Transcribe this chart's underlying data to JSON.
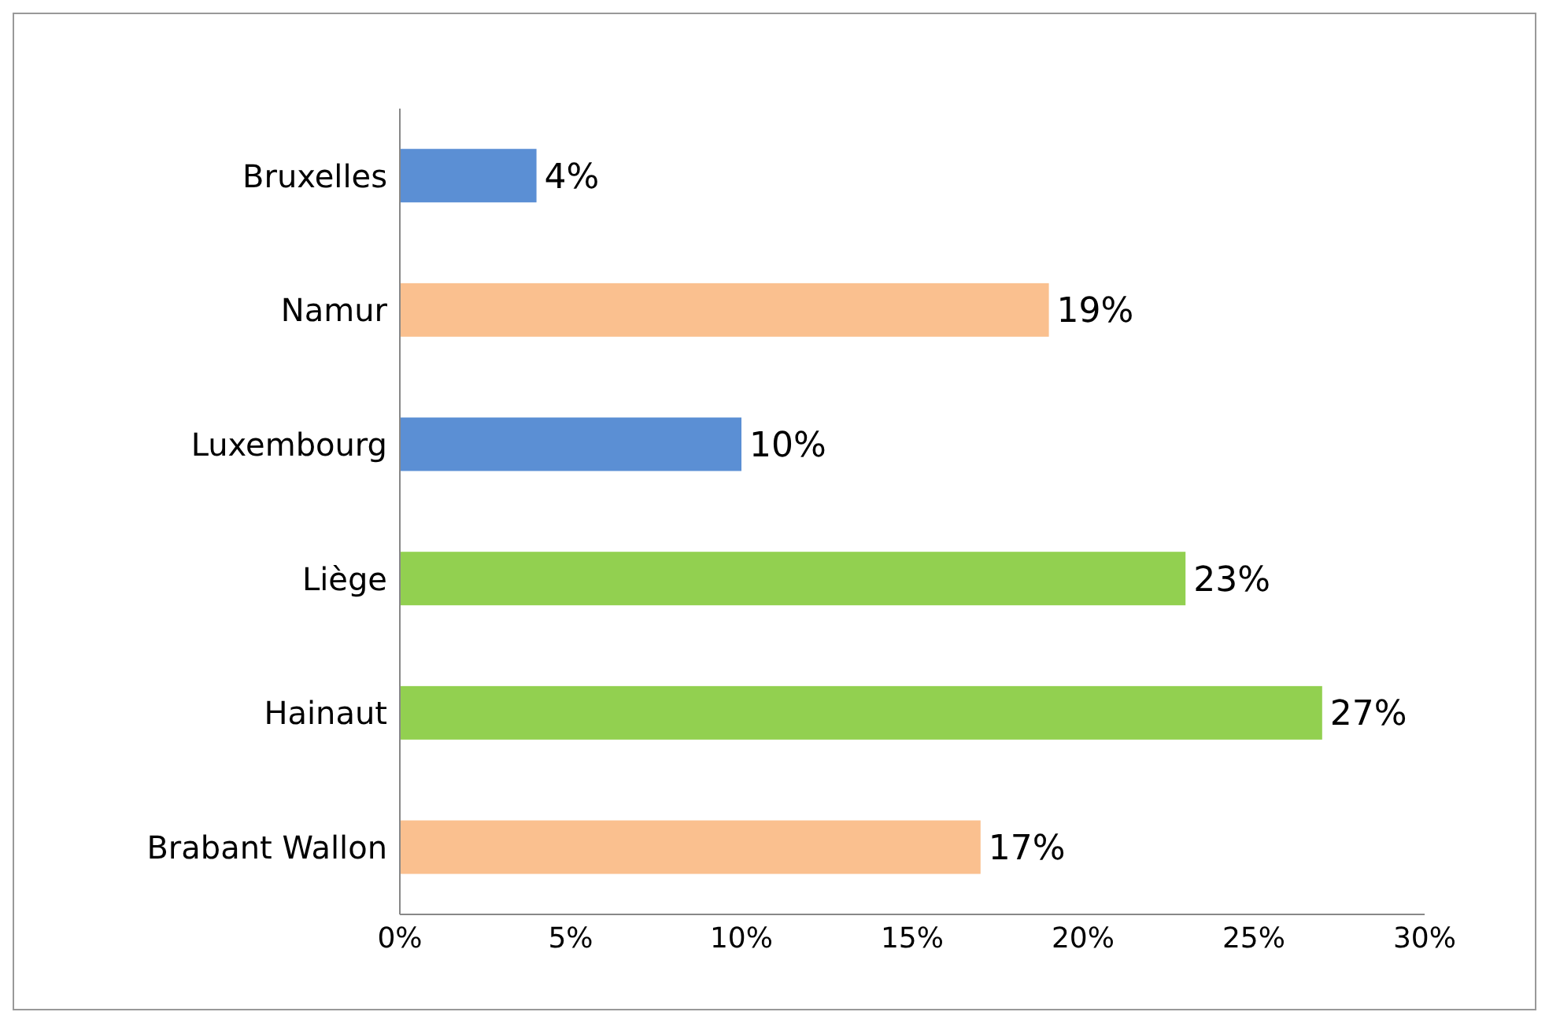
{
  "chart_data": {
    "type": "bar",
    "orientation": "horizontal",
    "categories": [
      "Bruxelles",
      "Namur",
      "Luxembourg",
      "Liège",
      "Hainaut",
      "Brabant Wallon"
    ],
    "values": [
      4,
      19,
      10,
      23,
      27,
      17
    ],
    "value_labels": [
      "4%",
      "19%",
      "10%",
      "23%",
      "27%",
      "17%"
    ],
    "colors": [
      "#5b8fd4",
      "#fac08f",
      "#5b8fd4",
      "#92d050",
      "#92d050",
      "#fac08f"
    ],
    "xlim": [
      0,
      30
    ],
    "xticks": [
      {
        "value": 0,
        "label": "0%"
      },
      {
        "value": 5,
        "label": "5%"
      },
      {
        "value": 10,
        "label": "10%"
      },
      {
        "value": 15,
        "label": "15%"
      },
      {
        "value": 20,
        "label": "20%"
      },
      {
        "value": 25,
        "label": "25%"
      },
      {
        "value": 30,
        "label": "30%"
      }
    ],
    "grid": false,
    "legend": false
  }
}
